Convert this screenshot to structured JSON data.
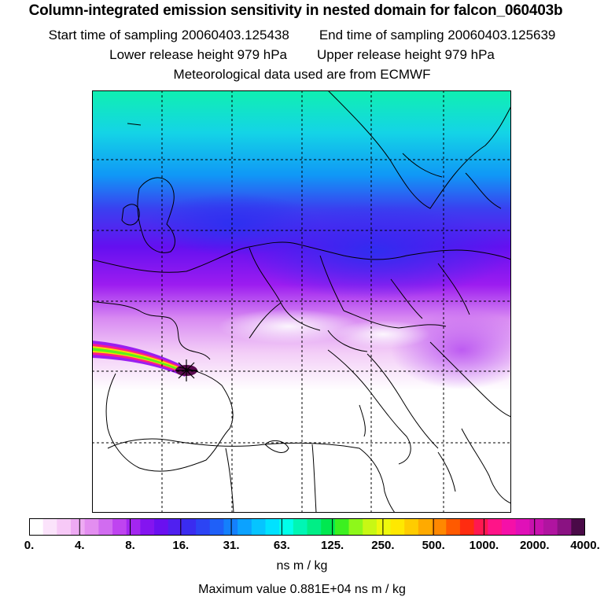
{
  "header": {
    "title": "Column-integrated emission sensitivity in nested domain for falcon_060403b",
    "start_time": "Start time of sampling 20060403.125438",
    "end_time": "End time of sampling 20060403.125639",
    "lower_release": "Lower release height  979 hPa",
    "upper_release": "Upper release height  979 hPa",
    "met_data": "Meteorological data used are from ECMWF"
  },
  "colorbar": {
    "labels": [
      "0.",
      "4.",
      "8.",
      "16.",
      "31.",
      "63.",
      "125.",
      "250.",
      "500.",
      "1000.",
      "2000.",
      "4000."
    ],
    "colors": [
      "#ffffff",
      "#fbe3fb",
      "#f7c9f7",
      "#eeaaf3",
      "#e38ef0",
      "#d16cf0",
      "#bf44f0",
      "#a326f0",
      "#8414f0",
      "#6a10f0",
      "#5020f0",
      "#3a2cf0",
      "#2c44f4",
      "#1f60f8",
      "#1480fc",
      "#0ca2ff",
      "#06c4ff",
      "#00e2ff",
      "#00ffea",
      "#00f6b4",
      "#00ee86",
      "#00e850",
      "#3cf020",
      "#8ef81a",
      "#c8f814",
      "#eef80c",
      "#ffe800",
      "#ffcc00",
      "#ffaa00",
      "#ff8800",
      "#ff5a00",
      "#ff2c10",
      "#ff1850",
      "#ff1488",
      "#f510a8",
      "#e010b8",
      "#c812ae",
      "#b014a0",
      "#8a1282",
      "#4a0a48"
    ],
    "units": "ns m / kg",
    "max_value": "Maximum value  0.881E+04 ns m / kg"
  },
  "map": {
    "meridians": 5,
    "parallels": 5,
    "release_marker": "release-location-star"
  }
}
